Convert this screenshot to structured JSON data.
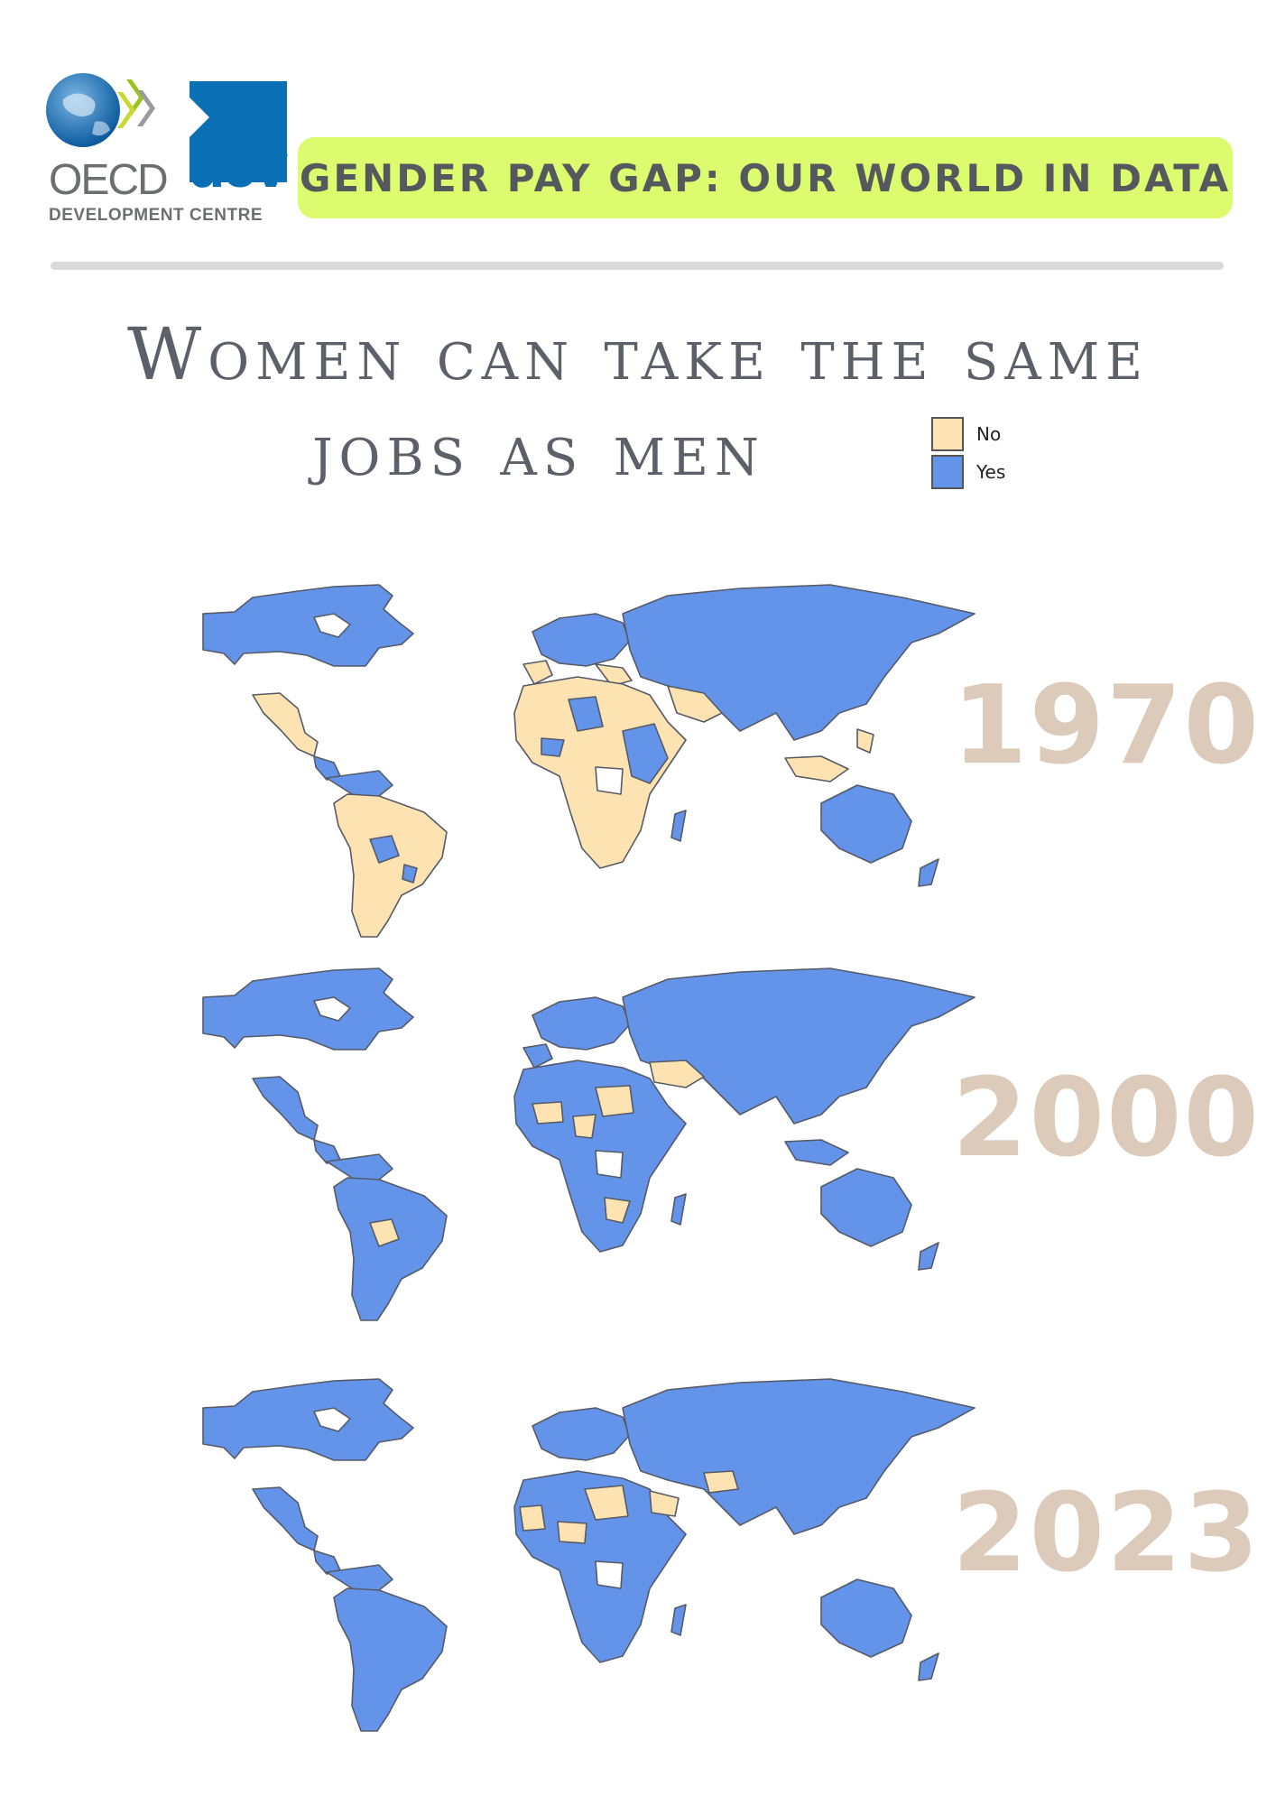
{
  "header": {
    "logo_oecd": "OECD",
    "logo_dev": "dev",
    "logo_subtitle": "DEVELOPMENT CENTRE",
    "banner": "GENDER PAY GAP: OUR WORLD IN DATA"
  },
  "title": {
    "line1": "Women can take the same",
    "line2": "jobs as men"
  },
  "legend": {
    "items": [
      {
        "label": "No",
        "color": "#fde3b2"
      },
      {
        "label": "Yes",
        "color": "#6494ea"
      }
    ]
  },
  "maps": [
    {
      "year": "1970"
    },
    {
      "year": "2000"
    },
    {
      "year": "2023"
    }
  ],
  "colors": {
    "yes": "#6494ea",
    "no": "#fde3b2",
    "border": "#555a66",
    "year_text": "#dccbba"
  }
}
